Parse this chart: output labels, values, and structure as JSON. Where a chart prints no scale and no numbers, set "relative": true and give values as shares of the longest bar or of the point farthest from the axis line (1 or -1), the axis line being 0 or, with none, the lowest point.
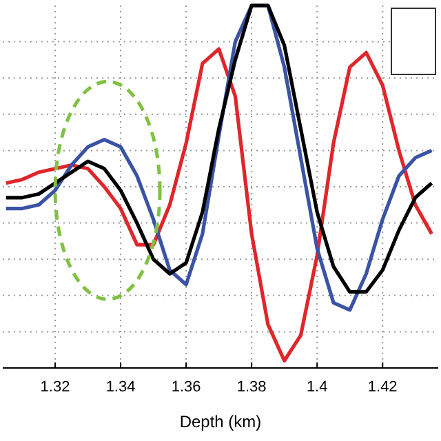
{
  "chart_data": {
    "type": "line",
    "xlabel": "Depth (km)",
    "relative": true,
    "grid": true,
    "line_style": "solid",
    "marker": "none",
    "x": [
      1.305,
      1.31,
      1.315,
      1.32,
      1.325,
      1.33,
      1.335,
      1.34,
      1.345,
      1.35,
      1.355,
      1.36,
      1.365,
      1.37,
      1.375,
      1.38,
      1.385,
      1.39,
      1.395,
      1.4,
      1.405,
      1.41,
      1.415,
      1.42,
      1.425,
      1.43,
      1.435
    ],
    "xlim": [
      1.304,
      1.437
    ],
    "xticks": [
      1.32,
      1.34,
      1.36,
      1.38,
      1.4,
      1.42
    ],
    "series": [
      {
        "color": "#e0262b",
        "values": [
          0.51,
          0.52,
          0.54,
          0.55,
          0.56,
          0.55,
          0.5,
          0.44,
          0.34,
          0.34,
          0.45,
          0.62,
          0.84,
          0.88,
          0.75,
          0.37,
          0.12,
          0.02,
          0.09,
          0.31,
          0.62,
          0.83,
          0.87,
          0.78,
          0.6,
          0.45,
          0.37
        ]
      },
      {
        "color": "#3a53a4",
        "values": [
          0.44,
          0.44,
          0.45,
          0.49,
          0.56,
          0.61,
          0.63,
          0.61,
          0.53,
          0.41,
          0.27,
          0.23,
          0.37,
          0.64,
          0.9,
          1.0,
          1.0,
          0.83,
          0.58,
          0.33,
          0.18,
          0.16,
          0.26,
          0.41,
          0.53,
          0.58,
          0.6
        ]
      },
      {
        "color": "#000000",
        "values": [
          0.47,
          0.47,
          0.48,
          0.51,
          0.54,
          0.57,
          0.55,
          0.49,
          0.4,
          0.3,
          0.26,
          0.29,
          0.43,
          0.66,
          0.85,
          1.0,
          1.0,
          0.89,
          0.66,
          0.43,
          0.28,
          0.21,
          0.21,
          0.27,
          0.38,
          0.47,
          0.51
        ]
      }
    ]
  }
}
